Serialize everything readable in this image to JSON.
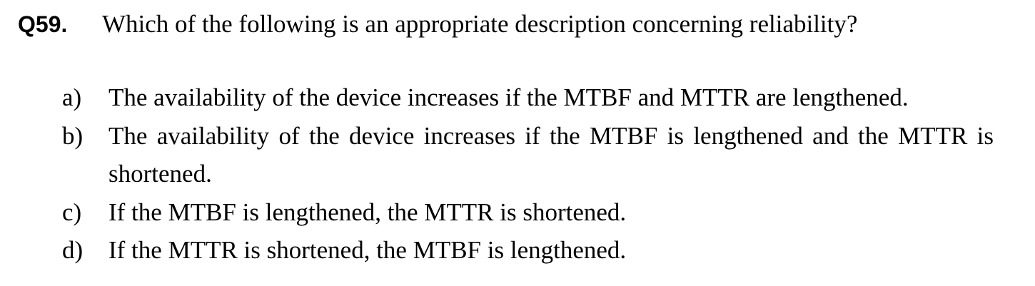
{
  "question": {
    "number": "Q59.",
    "text": "Which of the following is an appropriate description concerning reliability?"
  },
  "options": [
    {
      "label": "a)",
      "text": "The availability of the device increases if the MTBF and MTTR are lengthened."
    },
    {
      "label": "b)",
      "text": "The availability of the device increases if the MTBF is lengthened and the MTTR is shortened."
    },
    {
      "label": "c)",
      "text": "If the MTBF is lengthened, the MTTR is shortened."
    },
    {
      "label": "d)",
      "text": "If the MTTR is shortened, the MTBF is lengthened."
    }
  ]
}
